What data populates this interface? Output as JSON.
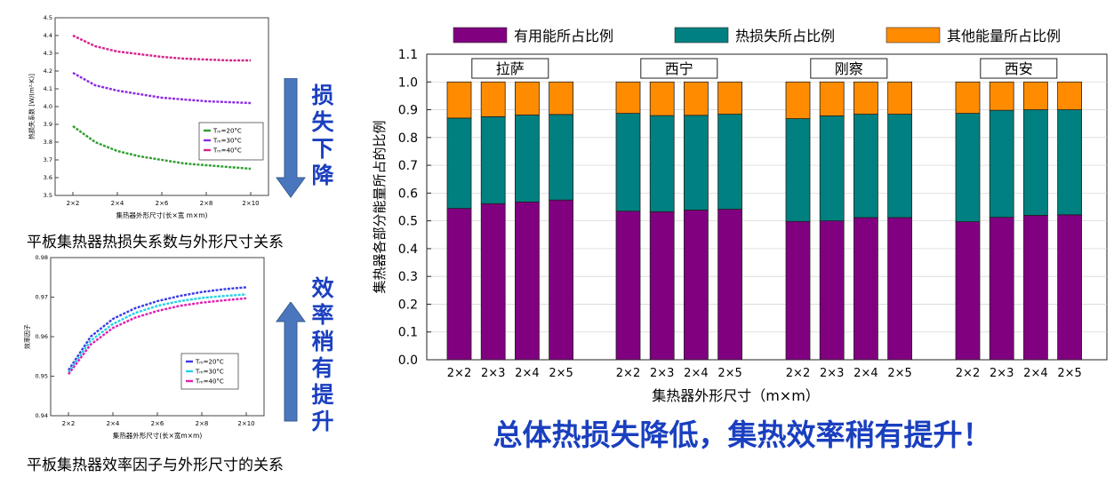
{
  "colors": {
    "useful": "#800080",
    "heat_loss": "#008080",
    "other": "#FF8C00",
    "arrow": "#4A76BE",
    "slogan": "#1A3FBF",
    "pink": "#D6238A",
    "purple": "#8B2BE2",
    "green": "#2E9E2E",
    "cyan": "#22D3E6",
    "magenta": "#E020B0",
    "blue": "#3A3AE6"
  },
  "caption_top": "平板集热器热损失系数与外形尺寸关系",
  "caption_bottom": "平板集热器效率因子与外形尺寸的关系",
  "label_loss": "损失下降",
  "label_eff": "效率稍有提升",
  "slogan": "总体热损失降低，集热效率稍有提升！",
  "chart_data": [
    {
      "type": "line",
      "ylabel": "热损失系数 [W/(m²·K)]",
      "xlabel": "集热器外形尺寸(长×宽 m×m)",
      "x_tick_labels": [
        "2×2",
        "2×4",
        "2×6",
        "2×8",
        "2×10"
      ],
      "x": [
        2,
        3,
        4,
        5,
        6,
        7,
        8,
        9,
        10
      ],
      "ylim": [
        3.5,
        4.5
      ],
      "y_ticks": [
        3.5,
        3.6,
        3.7,
        3.8,
        3.9,
        4.0,
        4.1,
        4.2,
        4.3,
        4.4,
        4.5
      ],
      "legend_position": "inside-right",
      "series": [
        {
          "name": "Tₘ=20°C",
          "color": "green",
          "values": [
            3.89,
            3.8,
            3.75,
            3.72,
            3.7,
            3.68,
            3.67,
            3.66,
            3.65
          ]
        },
        {
          "name": "Tₘ=30°C",
          "color": "purple",
          "values": [
            4.19,
            4.12,
            4.09,
            4.07,
            4.05,
            4.04,
            4.03,
            4.025,
            4.02
          ]
        },
        {
          "name": "Tₘ=40°C",
          "color": "pink",
          "values": [
            4.4,
            4.34,
            4.31,
            4.295,
            4.28,
            4.27,
            4.265,
            4.26,
            4.26
          ]
        }
      ]
    },
    {
      "type": "line",
      "ylabel": "效率因子",
      "xlabel": "集热器外形尺寸(长×宽m×m)",
      "x_tick_labels": [
        "2×2",
        "2×4",
        "2×6",
        "2×8",
        "2×10"
      ],
      "x": [
        2,
        3,
        4,
        5,
        6,
        7,
        8,
        9,
        10
      ],
      "ylim": [
        0.94,
        0.98
      ],
      "y_ticks": [
        0.94,
        0.95,
        0.96,
        0.97,
        0.98
      ],
      "legend_position": "bottom-right",
      "series": [
        {
          "name": "Tₘ=20°C",
          "color": "blue",
          "values": [
            0.9515,
            0.96,
            0.9645,
            0.9672,
            0.969,
            0.9703,
            0.9713,
            0.972,
            0.9725
          ]
        },
        {
          "name": "Tₘ=30°C",
          "color": "cyan",
          "values": [
            0.951,
            0.959,
            0.9632,
            0.966,
            0.9678,
            0.969,
            0.9698,
            0.9703,
            0.9707
          ]
        },
        {
          "name": "Tₘ=40°C",
          "color": "magenta",
          "values": [
            0.9505,
            0.958,
            0.9622,
            0.9648,
            0.9665,
            0.9678,
            0.9686,
            0.9692,
            0.9697
          ]
        }
      ]
    },
    {
      "type": "bar",
      "stacked": true,
      "ylabel": "集热器各部分能量所占的比例",
      "xlabel": "集热器外形尺寸（m×m）",
      "ylim": [
        0,
        1.1
      ],
      "y_ticks": [
        0.0,
        0.1,
        0.2,
        0.3,
        0.4,
        0.5,
        0.6,
        0.7,
        0.8,
        0.9,
        1.0,
        1.1
      ],
      "legend_position": "top",
      "legend": [
        "有用能所占比例",
        "热损失所占比例",
        "其他能量所占比例"
      ],
      "groups": [
        {
          "name": "拉萨",
          "categories": [
            "2×2",
            "2×3",
            "2×4",
            "2×5"
          ],
          "useful": [
            0.545,
            0.562,
            0.568,
            0.575
          ],
          "heat_loss": [
            0.325,
            0.313,
            0.313,
            0.308
          ],
          "other": [
            0.13,
            0.125,
            0.119,
            0.117
          ]
        },
        {
          "name": "西宁",
          "categories": [
            "2×2",
            "2×3",
            "2×4",
            "2×5"
          ],
          "useful": [
            0.535,
            0.533,
            0.539,
            0.542
          ],
          "heat_loss": [
            0.352,
            0.346,
            0.341,
            0.342
          ],
          "other": [
            0.113,
            0.121,
            0.12,
            0.116
          ]
        },
        {
          "name": "刚察",
          "categories": [
            "2×2",
            "2×3",
            "2×4",
            "2×5"
          ],
          "useful": [
            0.498,
            0.5,
            0.512,
            0.512
          ],
          "heat_loss": [
            0.37,
            0.378,
            0.372,
            0.372
          ],
          "other": [
            0.132,
            0.122,
            0.116,
            0.116
          ]
        },
        {
          "name": "西安",
          "categories": [
            "2×2",
            "2×3",
            "2×4",
            "2×5"
          ],
          "useful": [
            0.497,
            0.513,
            0.52,
            0.522
          ],
          "heat_loss": [
            0.39,
            0.385,
            0.38,
            0.378
          ],
          "other": [
            0.113,
            0.102,
            0.1,
            0.1
          ]
        }
      ]
    }
  ]
}
